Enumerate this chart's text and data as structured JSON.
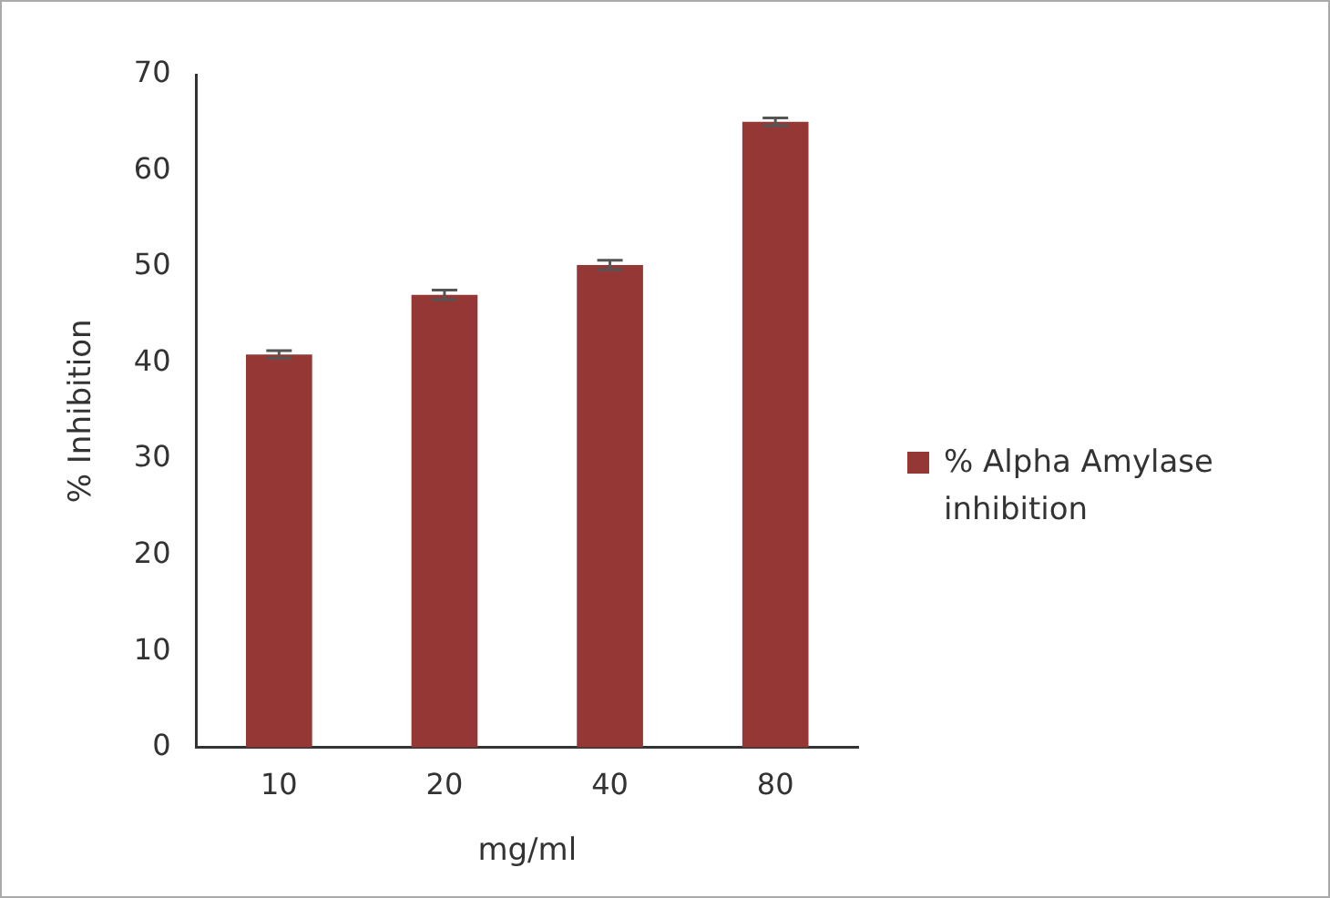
{
  "chart_data": {
    "type": "bar",
    "xlabel": "mg/ml",
    "ylabel": "% Inhibition",
    "categories": [
      "10",
      "20",
      "40",
      "80"
    ],
    "series": [
      {
        "name": "% Alpha Amylase inhibition",
        "color": "#953735",
        "values": [
          40.9,
          47.1,
          50.2,
          65.1
        ],
        "errors": [
          0.4,
          0.5,
          0.5,
          0.4
        ]
      }
    ],
    "ylim": [
      0,
      70
    ],
    "yticks": [
      0,
      10,
      20,
      30,
      40,
      50,
      60,
      70
    ],
    "grid": false,
    "legend": "right"
  }
}
